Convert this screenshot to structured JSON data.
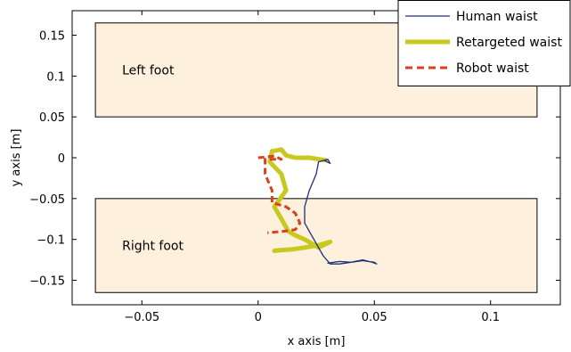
{
  "chart_data": {
    "type": "line",
    "xlabel": "x axis [m]",
    "ylabel": "y axis [m]",
    "xlim": [
      -0.08,
      0.13
    ],
    "ylim": [
      -0.18,
      0.18
    ],
    "xticks": [
      -0.05,
      0,
      0.05,
      0.1
    ],
    "xtick_labels": [
      "−0.05",
      "0",
      "0.05",
      "0.1"
    ],
    "yticks": [
      0.15,
      0.1,
      0.05,
      0,
      -0.05,
      -0.1,
      -0.15
    ],
    "ytick_labels": [
      "0.15",
      "0.1",
      "0.05",
      "0",
      "−0.05",
      "−0.1",
      "−0.15"
    ],
    "grid": false,
    "legend_position": "top-right",
    "regions": [
      {
        "label": "Left foot",
        "x": [
          -0.07,
          0.12
        ],
        "y": [
          0.05,
          0.165
        ],
        "color": "#fdf0dc"
      },
      {
        "label": "Right foot",
        "x": [
          -0.07,
          0.12
        ],
        "y": [
          -0.165,
          -0.05
        ],
        "color": "#fdf0dc"
      }
    ],
    "series": [
      {
        "name": "Human waist",
        "color": "#1f2f7a",
        "style": "solid",
        "x": [
          0.029,
          0.031,
          0.03,
          0.026,
          0.025,
          0.022,
          0.02,
          0.02,
          0.024,
          0.028,
          0.031,
          0.035,
          0.04,
          0.045,
          0.049,
          0.051,
          0.05,
          0.045,
          0.04,
          0.035,
          0.03
        ],
        "y": [
          -0.004,
          -0.007,
          -0.002,
          -0.005,
          -0.02,
          -0.04,
          -0.06,
          -0.08,
          -0.1,
          -0.12,
          -0.13,
          -0.13,
          -0.128,
          -0.125,
          -0.128,
          -0.13,
          -0.128,
          -0.126,
          -0.128,
          -0.127,
          -0.129
        ]
      },
      {
        "name": "Retargeted waist",
        "color": "#c8c81e",
        "style": "thick",
        "x": [
          0.029,
          0.022,
          0.016,
          0.012,
          0.01,
          0.006,
          0.005,
          0.01,
          0.012,
          0.007,
          0.01,
          0.013,
          0.016,
          0.02,
          0.026,
          0.031,
          0.026,
          0.02,
          0.015,
          0.01,
          0.007
        ],
        "y": [
          -0.003,
          0.0,
          0.0,
          0.003,
          0.01,
          0.008,
          -0.005,
          -0.02,
          -0.04,
          -0.06,
          -0.075,
          -0.09,
          -0.095,
          -0.1,
          -0.11,
          -0.103,
          -0.107,
          -0.11,
          -0.112,
          -0.113,
          -0.114
        ]
      },
      {
        "name": "Robot waist",
        "color": "#d9401c",
        "style": "dashed",
        "x": [
          0.0,
          0.007,
          0.01,
          0.003,
          0.003,
          0.006,
          0.006,
          0.012,
          0.016,
          0.018,
          0.016,
          0.011,
          0.004
        ],
        "y": [
          0.0,
          0.002,
          -0.002,
          -0.002,
          -0.02,
          -0.04,
          -0.055,
          -0.06,
          -0.068,
          -0.08,
          -0.088,
          -0.09,
          -0.092
        ]
      }
    ]
  }
}
